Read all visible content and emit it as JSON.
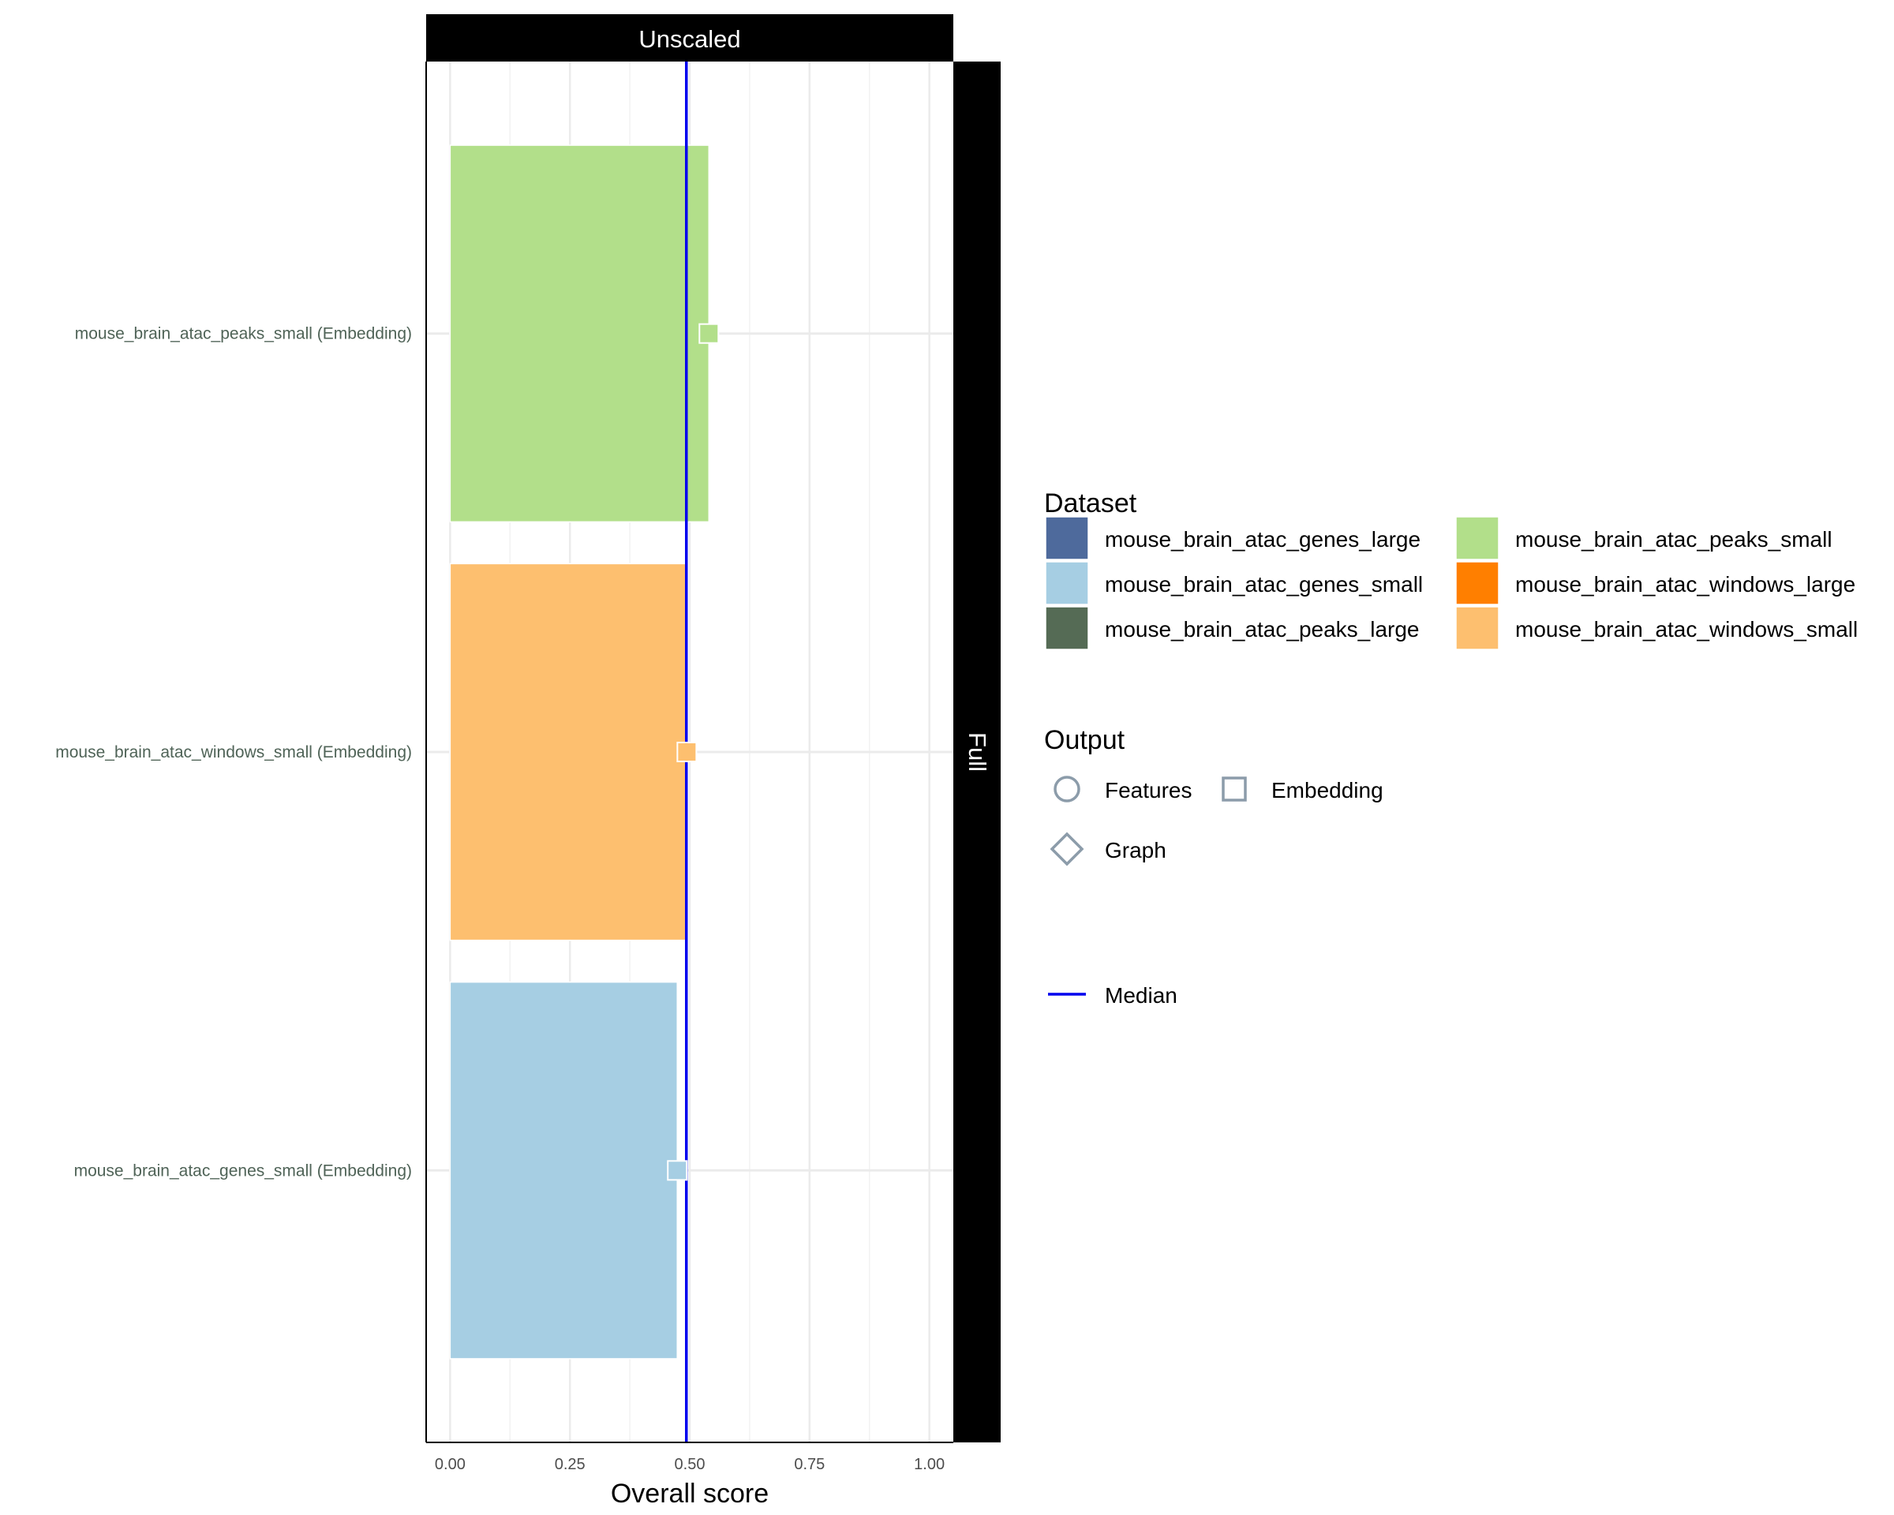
{
  "chart_data": {
    "type": "bar",
    "orientation": "horizontal",
    "facet_top": "Unscaled",
    "facet_right": "Full",
    "xlabel": "Overall score",
    "ylabel": "",
    "xlim": [
      -0.05,
      1.05
    ],
    "x_ticks": [
      0,
      0.25,
      0.5,
      0.75,
      1
    ],
    "x_tick_labels": [
      "0.00",
      "0.25",
      "0.50",
      "0.75",
      "1.00"
    ],
    "grid": true,
    "median": 0.493,
    "bars": [
      {
        "label": "mouse_brain_atac_peaks_small (Embedding)",
        "value": 0.54,
        "marker_value": 0.54,
        "color": "#B2DF8A",
        "marker": "square"
      },
      {
        "label": "mouse_brain_atac_windows_small (Embedding)",
        "value": 0.496,
        "marker_value": 0.494,
        "color": "#FDBF6F",
        "marker": "square"
      },
      {
        "label": "mouse_brain_atac_genes_small (Embedding)",
        "value": 0.474,
        "marker_value": 0.474,
        "color": "#A6CEE3",
        "marker": "square"
      }
    ],
    "legend_placement": "right"
  },
  "legend": {
    "dataset_title": "Dataset",
    "datasets": [
      {
        "name": "mouse_brain_atac_genes_large",
        "color": "#4E6A9C"
      },
      {
        "name": "mouse_brain_atac_genes_small",
        "color": "#A6CEE3"
      },
      {
        "name": "mouse_brain_atac_peaks_large",
        "color": "#556B55"
      },
      {
        "name": "mouse_brain_atac_peaks_small",
        "color": "#B2DF8A"
      },
      {
        "name": "mouse_brain_atac_windows_large",
        "color": "#FF7F00"
      },
      {
        "name": "mouse_brain_atac_windows_small",
        "color": "#FDBF6F"
      }
    ],
    "output_title": "Output",
    "outputs": [
      {
        "name": "Features",
        "shape": "circle"
      },
      {
        "name": "Embedding",
        "shape": "square"
      },
      {
        "name": "Graph",
        "shape": "diamond"
      }
    ],
    "median_label": "Median",
    "median_color": "#0000EE"
  }
}
